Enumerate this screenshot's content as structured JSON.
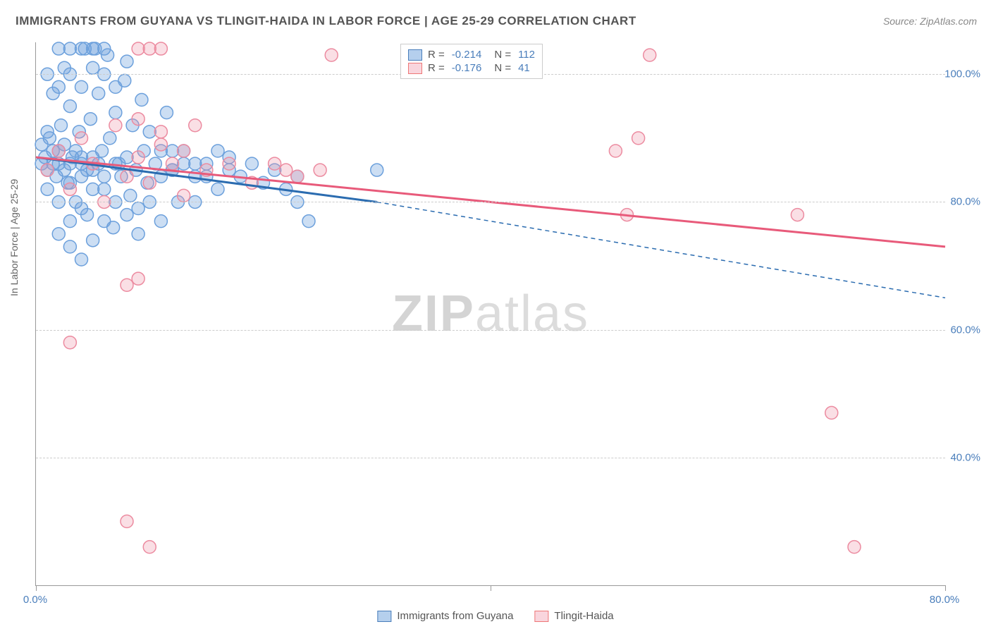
{
  "title": "IMMIGRANTS FROM GUYANA VS TLINGIT-HAIDA IN LABOR FORCE | AGE 25-29 CORRELATION CHART",
  "source": "Source: ZipAtlas.com",
  "ylabel": "In Labor Force | Age 25-29",
  "watermark_a": "ZIP",
  "watermark_b": "atlas",
  "chart": {
    "type": "scatter",
    "xlim": [
      0,
      80
    ],
    "ylim": [
      20,
      105
    ],
    "xticks": [
      0,
      40,
      80
    ],
    "xtick_labels": [
      "0.0%",
      "",
      "80.0%"
    ],
    "yticks": [
      40,
      60,
      80,
      100
    ],
    "ytick_labels": [
      "40.0%",
      "60.0%",
      "80.0%",
      "100.0%"
    ],
    "grid_color": "#cccccc",
    "background_color": "#ffffff",
    "marker_radius": 9,
    "series": [
      {
        "name": "Immigrants from Guyana",
        "color_fill": "rgba(108,160,220,0.35)",
        "color_stroke": "#6ca0dc",
        "R": "-0.214",
        "N": "112",
        "trend": {
          "x1": 0,
          "y1": 87,
          "x2_solid": 30,
          "y2_solid": 80,
          "x2_dash": 80,
          "y2_dash": 65,
          "color": "#2b6cb0",
          "width": 3
        },
        "points": [
          [
            0.5,
            86
          ],
          [
            0.8,
            87
          ],
          [
            1,
            85
          ],
          [
            1.2,
            90
          ],
          [
            1.5,
            88
          ],
          [
            1.8,
            84
          ],
          [
            2,
            86
          ],
          [
            2.2,
            92
          ],
          [
            2.5,
            89
          ],
          [
            2.8,
            83
          ],
          [
            3,
            95
          ],
          [
            3.2,
            87
          ],
          [
            3.5,
            80
          ],
          [
            3.8,
            91
          ],
          [
            4,
            86
          ],
          [
            4.3,
            104
          ],
          [
            4.5,
            78
          ],
          [
            4.8,
            93
          ],
          [
            5,
            85
          ],
          [
            5.2,
            104
          ],
          [
            5.5,
            97
          ],
          [
            5.8,
            88
          ],
          [
            6,
            82
          ],
          [
            6.3,
            103
          ],
          [
            6.5,
            90
          ],
          [
            6.8,
            76
          ],
          [
            7,
            94
          ],
          [
            7.3,
            86
          ],
          [
            7.5,
            84
          ],
          [
            7.8,
            99
          ],
          [
            8,
            87
          ],
          [
            8.3,
            81
          ],
          [
            8.5,
            92
          ],
          [
            8.8,
            85
          ],
          [
            9,
            79
          ],
          [
            9.3,
            96
          ],
          [
            9.5,
            88
          ],
          [
            9.8,
            83
          ],
          [
            10,
            91
          ],
          [
            10.5,
            86
          ],
          [
            11,
            77
          ],
          [
            11.5,
            94
          ],
          [
            12,
            85
          ],
          [
            12.5,
            80
          ],
          [
            13,
            88
          ],
          [
            14,
            86
          ],
          [
            3,
            73
          ],
          [
            4,
            71
          ],
          [
            5,
            74
          ],
          [
            2,
            98
          ],
          [
            1,
            100
          ],
          [
            3,
            100
          ],
          [
            6,
            100
          ],
          [
            1.5,
            97
          ],
          [
            2.5,
            101
          ],
          [
            4,
            98
          ],
          [
            5,
            101
          ],
          [
            7,
            98
          ],
          [
            8,
            102
          ],
          [
            2,
            75
          ],
          [
            3,
            77
          ],
          [
            4,
            79
          ],
          [
            6,
            77
          ],
          [
            7,
            80
          ],
          [
            8,
            78
          ],
          [
            9,
            75
          ],
          [
            10,
            80
          ],
          [
            11,
            84
          ],
          [
            12,
            88
          ],
          [
            15,
            86
          ],
          [
            16,
            82
          ],
          [
            17,
            87
          ],
          [
            18,
            84
          ],
          [
            19,
            86
          ],
          [
            20,
            83
          ],
          [
            21,
            85
          ],
          [
            22,
            82
          ],
          [
            23,
            80
          ],
          [
            14,
            80
          ],
          [
            15,
            84
          ],
          [
            16,
            88
          ],
          [
            17,
            85
          ],
          [
            1,
            82
          ],
          [
            2,
            80
          ],
          [
            3,
            83
          ],
          [
            4,
            84
          ],
          [
            5,
            82
          ],
          [
            6,
            84
          ],
          [
            7,
            86
          ],
          [
            0.5,
            89
          ],
          [
            1,
            91
          ],
          [
            1.5,
            86
          ],
          [
            2,
            88
          ],
          [
            2.5,
            85
          ],
          [
            3,
            86
          ],
          [
            3.5,
            88
          ],
          [
            4,
            87
          ],
          [
            4.5,
            85
          ],
          [
            5,
            87
          ],
          [
            5.5,
            86
          ],
          [
            11,
            88
          ],
          [
            12,
            85
          ],
          [
            13,
            86
          ],
          [
            14,
            84
          ],
          [
            23,
            84
          ],
          [
            24,
            77
          ],
          [
            30,
            85
          ],
          [
            2,
            104
          ],
          [
            3,
            104
          ],
          [
            4,
            104
          ],
          [
            5,
            104
          ],
          [
            6,
            104
          ]
        ]
      },
      {
        "name": "Tlingit-Haida",
        "color_fill": "rgba(240,150,170,0.30)",
        "color_stroke": "#ec8ba0",
        "R": "-0.176",
        "N": "41",
        "trend": {
          "x1": 0,
          "y1": 87,
          "x2_solid": 80,
          "y2_solid": 73,
          "color": "#e85a7a",
          "width": 3
        },
        "points": [
          [
            1,
            85
          ],
          [
            2,
            88
          ],
          [
            3,
            82
          ],
          [
            4,
            90
          ],
          [
            5,
            86
          ],
          [
            6,
            80
          ],
          [
            7,
            92
          ],
          [
            8,
            84
          ],
          [
            9,
            87
          ],
          [
            10,
            83
          ],
          [
            11,
            89
          ],
          [
            12,
            86
          ],
          [
            13,
            81
          ],
          [
            14,
            92
          ],
          [
            15,
            85
          ],
          [
            17,
            86
          ],
          [
            19,
            83
          ],
          [
            21,
            86
          ],
          [
            23,
            84
          ],
          [
            25,
            85
          ],
          [
            9,
            104
          ],
          [
            10,
            104
          ],
          [
            11,
            104
          ],
          [
            9,
            93
          ],
          [
            11,
            91
          ],
          [
            13,
            88
          ],
          [
            26,
            103
          ],
          [
            37,
            103
          ],
          [
            53,
            90
          ],
          [
            67,
            78
          ],
          [
            8,
            67
          ],
          [
            9,
            68
          ],
          [
            3,
            58
          ],
          [
            8,
            30
          ],
          [
            10,
            26
          ],
          [
            70,
            47
          ],
          [
            72,
            26
          ],
          [
            52,
            78
          ],
          [
            51,
            88
          ],
          [
            54,
            103
          ],
          [
            22,
            85
          ]
        ]
      }
    ]
  },
  "legend_bottom": [
    {
      "swatch": "blue",
      "label": "Immigrants from Guyana"
    },
    {
      "swatch": "pink",
      "label": "Tlingit-Haida"
    }
  ]
}
